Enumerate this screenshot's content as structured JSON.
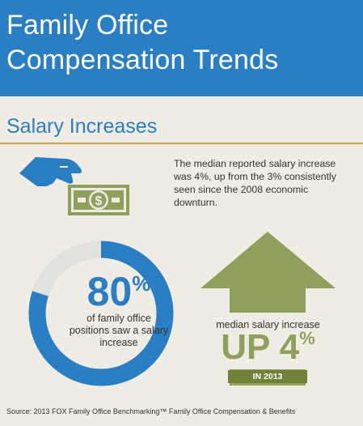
{
  "header": {
    "title_line1": "Family Office",
    "title_line2": "Compensation Trends"
  },
  "section": {
    "title": "Salary Increases"
  },
  "description": "The median reported salary increase was 4%, up from the 3% consistently seen since the 2008 economic downturn.",
  "stat_80": {
    "value": "80",
    "symbol": "%",
    "label": "of family office positions saw a salary increase",
    "fraction": 0.8
  },
  "stat_up": {
    "caption": "median salary increase",
    "up_text": "UP 4",
    "symbol": "%",
    "year_label": "IN 2013"
  },
  "source": "Source:  2013 FOX Family Office Benchmarking™ Family Office Compensation & Benefits",
  "colors": {
    "brand_blue": "#2a7ec3",
    "gold_rule": "#c9a84a",
    "olive_light": "#8fa05c",
    "olive_dark": "#6f8238",
    "background": "#efece4"
  },
  "icons": [
    "hand-dropping-money-icon",
    "dollar-bill-icon",
    "up-arrow-icon"
  ]
}
